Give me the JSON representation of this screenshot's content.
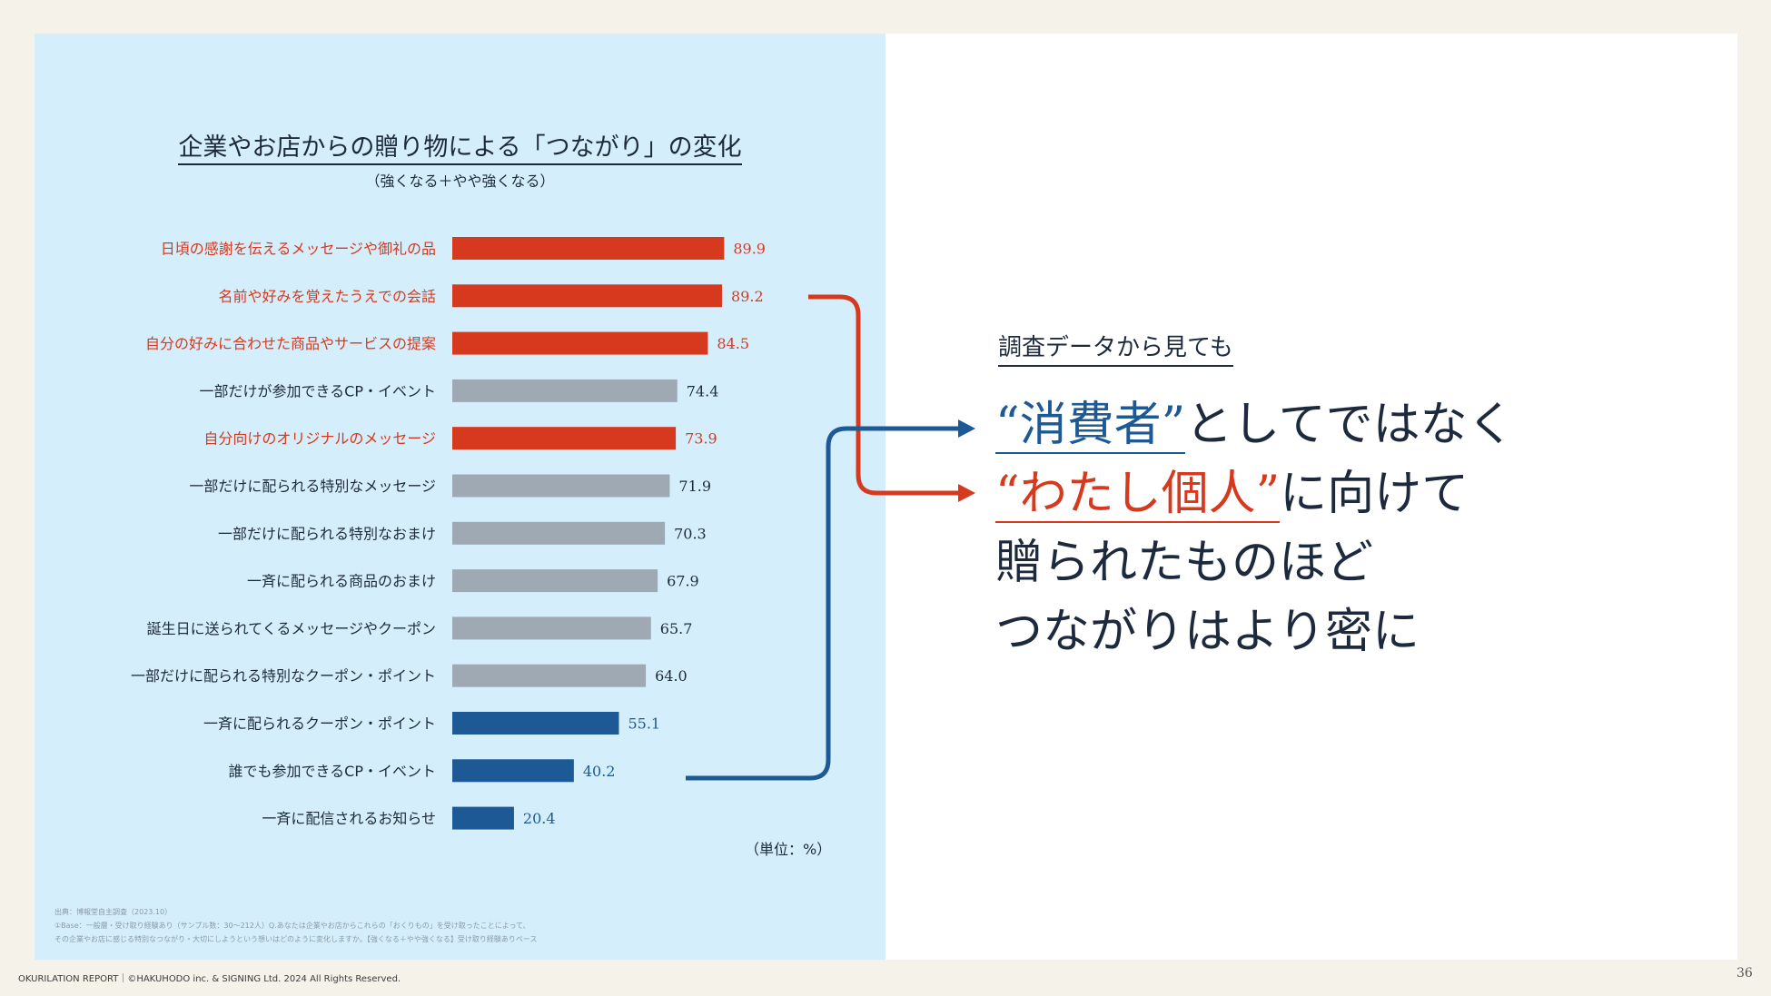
{
  "chart_data": {
    "type": "bar",
    "orientation": "horizontal",
    "title": "企業やお店からの贈り物による「つながり」の変化",
    "subtitle": "（強くなる＋やや強くなる）",
    "unit_label": "（単位：%）",
    "categories": [
      "日頃の感謝を伝えるメッセージや御礼の品",
      "名前や好みを覚えたうえでの会話",
      "自分の好みに合わせた商品やサービスの提案",
      "一部だけが参加できるCP・イベント",
      "自分向けのオリジナルのメッセージ",
      "一部だけに配られる特別なメッセージ",
      "一部だけに配られる特別なおまけ",
      "一斉に配られる商品のおまけ",
      "誕生日に送られてくるメッセージやクーポン",
      "一部だけに配られる特別なクーポン・ポイント",
      "一斉に配られるクーポン・ポイント",
      "誰でも参加できるCP・イベント",
      "一斉に配信されるお知らせ"
    ],
    "values": [
      89.9,
      89.2,
      84.5,
      74.4,
      73.9,
      71.9,
      70.3,
      67.9,
      65.7,
      64.0,
      55.1,
      40.2,
      20.4
    ],
    "value_labels": [
      "89.9",
      "89.2",
      "84.5",
      "74.4",
      "73.9",
      "71.9",
      "70.3",
      "67.9",
      "65.7",
      "64.0",
      "55.1",
      "40.2",
      "20.4"
    ],
    "groups": [
      "personal",
      "personal",
      "personal",
      "neutral",
      "personal",
      "neutral",
      "neutral",
      "neutral",
      "neutral",
      "neutral",
      "mass",
      "mass",
      "mass"
    ],
    "xlim": [
      0,
      100
    ]
  },
  "colors": {
    "personal": "#d6391d",
    "neutral": "#9ea9b4",
    "mass": "#1d5a95",
    "text_dark": "#1d2a3d"
  },
  "source_note": {
    "line1": "出典：博報堂自主調査（2023.10）",
    "line2": "①Base：一般層・受け取り経験あり（サンプル数：30～212人）Q.あなたは企業やお店からこれらの「おくりもの」を受け取ったことによって、",
    "line3": "その企業やお店に感じる特別なつながり・大切にしようという想いはどのように変化しますか。【強くなる＋やや強くなる】受け取り経験ありベース"
  },
  "message": {
    "lead": "調査データから見ても",
    "line1_highlight": "“消費者”",
    "line1_rest": "としてではなく",
    "line2_highlight": "“わたし個人”",
    "line2_rest": "に向けて",
    "line3": "贈られたものほど",
    "line4": "つながりはより密に"
  },
  "footer": "OKURILATION REPORT｜©HAKUHODO inc. & SIGNING Ltd. 2024 All Rights Reserved.",
  "page_number": "36"
}
